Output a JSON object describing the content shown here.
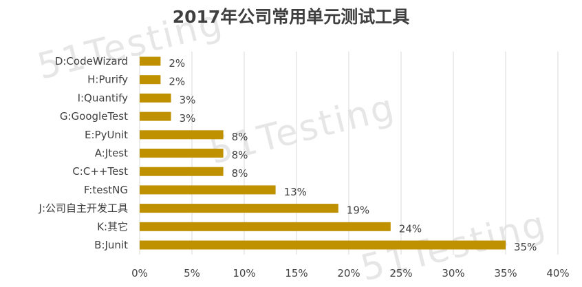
{
  "chart_data": {
    "type": "bar",
    "orientation": "horizontal",
    "title": "2017年公司常用单元测试工具",
    "categories": [
      "D:CodeWizard",
      "H:Purify",
      "I:Quantify",
      "G:GoogleTest",
      "E:PyUnit",
      "A:Jtest",
      "C:C++Test",
      "F:testNG",
      "J:公司自主开发工具",
      "K:其它",
      "B:Junit"
    ],
    "values": [
      2,
      2,
      3,
      3,
      8,
      8,
      8,
      13,
      19,
      24,
      35
    ],
    "data_labels": [
      "2%",
      "2%",
      "3%",
      "3%",
      "8%",
      "8%",
      "8%",
      "13%",
      "19%",
      "24%",
      "35%"
    ],
    "xlim": [
      0,
      40
    ],
    "x_ticks": [
      0,
      5,
      10,
      15,
      20,
      25,
      30,
      35,
      40
    ],
    "x_tick_labels": [
      "0%",
      "5%",
      "10%",
      "15%",
      "20%",
      "25%",
      "30%",
      "35%",
      "40%"
    ],
    "grid": "vertical",
    "legend": "none",
    "bar_color": "#bf9000",
    "grid_color": "#d9d9d9"
  },
  "watermark": "51Testing"
}
